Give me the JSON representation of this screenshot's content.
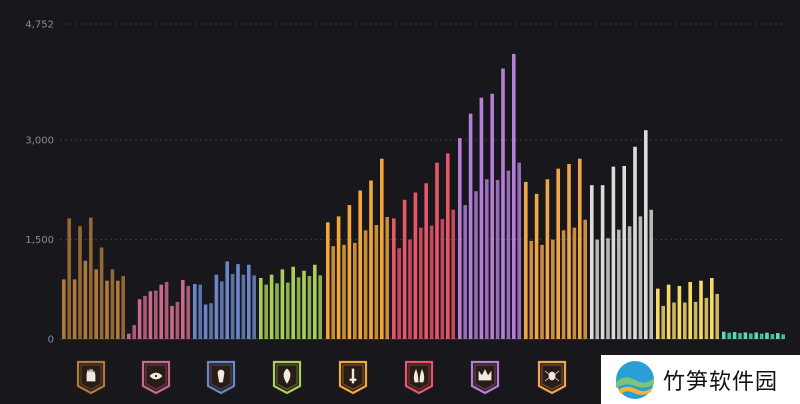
{
  "chart_data": {
    "type": "bar",
    "title": "",
    "xlabel": "",
    "ylabel": "",
    "ylim": [
      0,
      4752
    ],
    "yticks": [
      {
        "value": 0,
        "label": "0"
      },
      {
        "value": 1500,
        "label": "1,500"
      },
      {
        "value": 3000,
        "label": "3,000"
      },
      {
        "value": 4752,
        "label": "4,752"
      }
    ],
    "grid": "horizontal-dotted",
    "groups": [
      {
        "name": "",
        "icon": "open-hand-icon",
        "color": "#b07a3c",
        "values": [
          900,
          1820,
          900,
          1700,
          1180,
          1830,
          1050,
          1380,
          880,
          1050,
          880,
          950
        ]
      },
      {
        "name": "",
        "icon": "eye-mask-icon",
        "color": "#c96a8c",
        "values": [
          80,
          210,
          600,
          650,
          720,
          730,
          820,
          860,
          500,
          560,
          890,
          800
        ]
      },
      {
        "name": "",
        "icon": "keyhole-icon",
        "color": "#6a86c8",
        "values": [
          830,
          820,
          520,
          540,
          970,
          870,
          1170,
          980,
          1130,
          970,
          1120,
          960
        ]
      },
      {
        "name": "",
        "icon": "leaf-icon",
        "color": "#a9cf5a",
        "values": [
          920,
          820,
          970,
          840,
          1050,
          850,
          1090,
          930,
          1030,
          950,
          1120,
          960
        ]
      },
      {
        "name": "",
        "icon": "dagger-icon",
        "color": "#f2a73a",
        "values": [
          1760,
          1400,
          1850,
          1420,
          2020,
          1450,
          2240,
          1640,
          2390,
          1720,
          2720,
          1840
        ]
      },
      {
        "name": "",
        "icon": "twin-flame-icon",
        "color": "#e8566a",
        "values": [
          1820,
          1370,
          2100,
          1500,
          2210,
          1680,
          2350,
          1710,
          2660,
          1810,
          2800,
          1950
        ]
      },
      {
        "name": "",
        "icon": "crown-icon",
        "color": "#b57fd8",
        "values": [
          3030,
          2020,
          3400,
          2230,
          3640,
          2410,
          3700,
          2400,
          4080,
          2540,
          4300,
          2660
        ]
      },
      {
        "name": "",
        "icon": "spider-icon",
        "color": "#f0a64a",
        "values": [
          2370,
          1480,
          2190,
          1420,
          2410,
          1500,
          2570,
          1640,
          2640,
          1680,
          2720,
          1800
        ]
      },
      {
        "name": "",
        "icon": "mask-icon",
        "color": "#dcdcdc",
        "values": [
          2320,
          1500,
          2320,
          1520,
          2600,
          1650,
          2610,
          1700,
          2900,
          1850,
          3150,
          1950
        ]
      },
      {
        "name": "",
        "icon": "sun-icon",
        "color": "#f7d96a",
        "values": [
          760,
          500,
          820,
          550,
          800,
          550,
          860,
          560,
          880,
          620,
          920,
          680
        ]
      },
      {
        "name": "",
        "icon": "wave-icon",
        "color": "#5fd8b3",
        "values": [
          110,
          95,
          105,
          90,
          100,
          85,
          100,
          80,
          95,
          75,
          90,
          70
        ]
      }
    ]
  },
  "watermark": {
    "text": "竹笋软件园"
  }
}
